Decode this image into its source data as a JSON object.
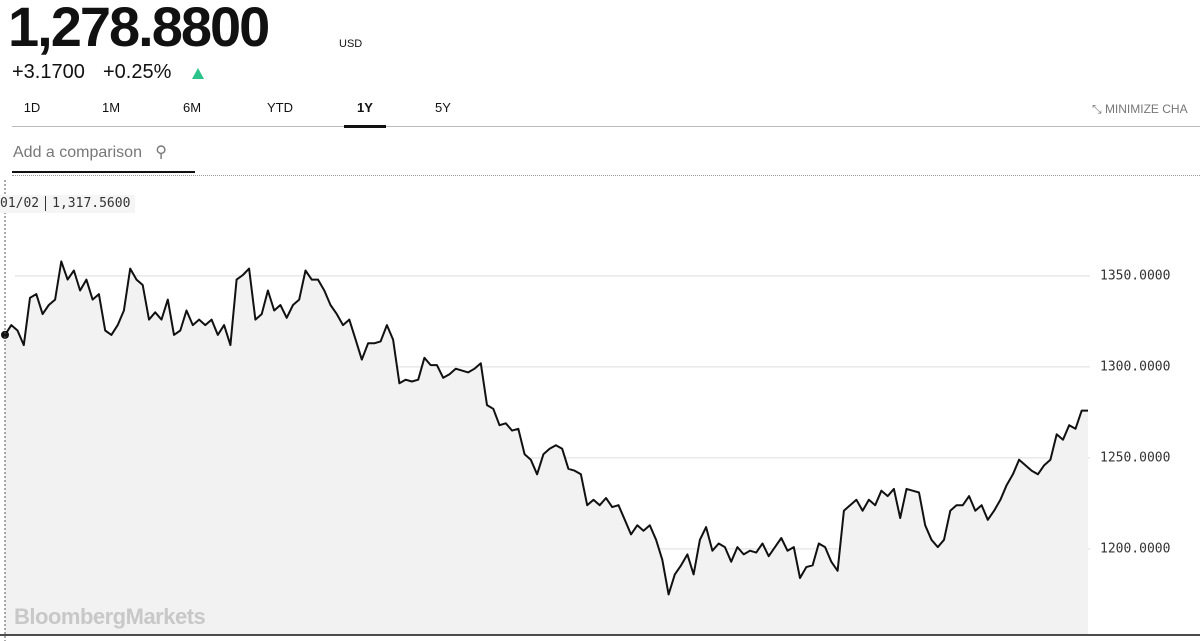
{
  "header": {
    "price": "1,278.8800",
    "currency": "USD",
    "change": "+3.1700",
    "change_percent": "+0.25%"
  },
  "tabs": [
    "1D",
    "1M",
    "6M",
    "YTD",
    "1Y",
    "5Y"
  ],
  "active_tab": 4,
  "minimize": "MINIMIZE CHA",
  "search_placeholder": "Add a comparison",
  "tooltip": {
    "date": "01/02",
    "value": "1,317.5600"
  },
  "watermark": "BloombergMarkets",
  "chart_data": {
    "type": "line",
    "color": "#111111",
    "area_color": "#f2f2f2",
    "grid": true,
    "ylim": [
      1152.7,
      1402.7
    ],
    "yticks": [
      {
        "value": 1200,
        "label": "1200.0000"
      },
      {
        "value": 1250,
        "label": "1250.0000"
      },
      {
        "value": 1300,
        "label": "1300.0000"
      },
      {
        "value": 1350,
        "label": "1350.0000"
      }
    ],
    "values": [
      1317.6,
      1323,
      1320,
      1312,
      1338,
      1340,
      1329,
      1334,
      1337,
      1358,
      1348,
      1353,
      1342,
      1348,
      1337,
      1340,
      1320,
      1317.6,
      1323,
      1331,
      1354,
      1348,
      1345,
      1326,
      1330,
      1326,
      1337,
      1317.6,
      1320,
      1331,
      1323,
      1326,
      1323,
      1326,
      1317.6,
      1323,
      1312,
      1348,
      1350.5,
      1354,
      1326,
      1329,
      1342,
      1331,
      1334,
      1327,
      1334,
      1337,
      1353,
      1348,
      1348,
      1342,
      1334,
      1329,
      1323,
      1326,
      1315,
      1304,
      1313,
      1313,
      1314,
      1323,
      1315,
      1291,
      1293,
      1292,
      1293,
      1305,
      1301,
      1301,
      1294,
      1296,
      1299,
      1298,
      1297,
      1299,
      1302,
      1279,
      1277,
      1268,
      1269,
      1265,
      1266,
      1252,
      1249,
      1241,
      1252,
      1255,
      1257,
      1255,
      1244,
      1243,
      1241,
      1224,
      1227,
      1224,
      1228,
      1223,
      1224,
      1216,
      1208,
      1213,
      1210,
      1213,
      1205,
      1194,
      1175,
      1186,
      1191,
      1197,
      1186,
      1205,
      1212,
      1199,
      1203,
      1201,
      1193,
      1201,
      1197,
      1199,
      1198,
      1203,
      1196,
      1201,
      1206,
      1199,
      1201,
      1184,
      1190,
      1191,
      1203,
      1201,
      1193,
      1188,
      1221,
      1224,
      1227,
      1221,
      1227,
      1224,
      1232,
      1229,
      1233,
      1217,
      1233,
      1232,
      1231,
      1213,
      1205,
      1201,
      1205,
      1221,
      1224,
      1224,
      1229,
      1221,
      1224,
      1216,
      1221,
      1227,
      1235,
      1241,
      1249,
      1246,
      1243,
      1241,
      1246,
      1249,
      1263,
      1260,
      1268,
      1266,
      1276,
      1276
    ]
  }
}
